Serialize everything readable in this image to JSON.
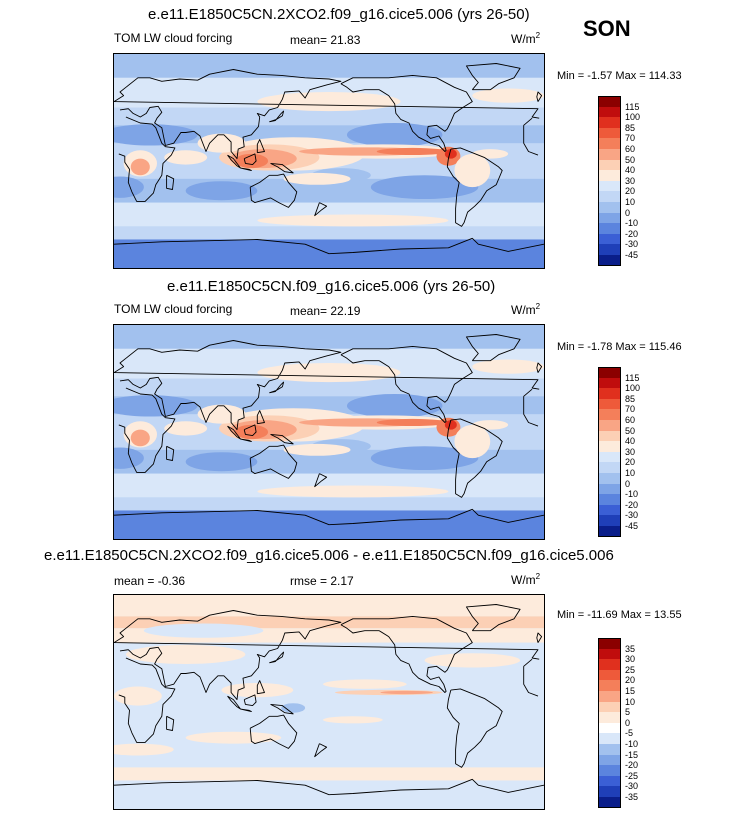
{
  "season": "SON",
  "panels": [
    {
      "id": "test",
      "title": "e.e11.E1850C5CN.2XCO2.f09_g16.cice5.006 (yrs 26-50)",
      "variable": "TOM LW cloud forcing",
      "stat1_label": "mean=",
      "stat1_value": "21.83",
      "stat2_label": "",
      "stat2_value": "",
      "units": "W/m",
      "units_sup": "2",
      "min_label": "Min =",
      "min_value": "-1.57",
      "max_label": "Max =",
      "max_value": "114.33",
      "levels": [
        "115",
        "100",
        "85",
        "70",
        "60",
        "50",
        "40",
        "30",
        "20",
        "10",
        "0",
        "-10",
        "-20",
        "-30",
        "-45"
      ],
      "colors": [
        "#8b0000",
        "#c00d0d",
        "#e0301e",
        "#ee5a3a",
        "#f47f5a",
        "#f9a585",
        "#fcd0b5",
        "#fdebdc",
        "#d9e7f9",
        "#c2d7f5",
        "#a2c1ee",
        "#7ea4e6",
        "#5b84de",
        "#3b5fd5",
        "#1f3fb8",
        "#0a1e8a"
      ]
    },
    {
      "id": "control",
      "title": "e.e11.E1850C5CN.f09_g16.cice5.006 (yrs 26-50)",
      "variable": "TOM LW cloud forcing",
      "stat1_label": "mean=",
      "stat1_value": "22.19",
      "stat2_label": "",
      "stat2_value": "",
      "units": "W/m",
      "units_sup": "2",
      "min_label": "Min =",
      "min_value": "-1.78",
      "max_label": "Max =",
      "max_value": "115.46",
      "levels": [
        "115",
        "100",
        "85",
        "70",
        "60",
        "50",
        "40",
        "30",
        "20",
        "10",
        "0",
        "-10",
        "-20",
        "-30",
        "-45"
      ],
      "colors": [
        "#8b0000",
        "#c00d0d",
        "#e0301e",
        "#ee5a3a",
        "#f47f5a",
        "#f9a585",
        "#fcd0b5",
        "#fdebdc",
        "#d9e7f9",
        "#c2d7f5",
        "#a2c1ee",
        "#7ea4e6",
        "#5b84de",
        "#3b5fd5",
        "#1f3fb8",
        "#0a1e8a"
      ]
    },
    {
      "id": "diff",
      "title": "e.e11.E1850C5CN.2XCO2.f09_g16.cice5.006 - e.e11.E1850C5CN.f09_g16.cice5.006",
      "variable": "",
      "stat1_label": "mean =",
      "stat1_value": "-0.36",
      "stat2_label": "rmse =",
      "stat2_value": "2.17",
      "units": "W/m",
      "units_sup": "2",
      "min_label": "Min =",
      "min_value": "-11.69",
      "max_label": "Max =",
      "max_value": "13.55",
      "levels": [
        "35",
        "30",
        "25",
        "20",
        "15",
        "10",
        "5",
        "0",
        "-5",
        "-10",
        "-15",
        "-20",
        "-25",
        "-30",
        "-35"
      ],
      "colors": [
        "#8b0000",
        "#c00d0d",
        "#e0301e",
        "#ee5a3a",
        "#f47f5a",
        "#f9a585",
        "#fcd0b5",
        "#fdebdc",
        "#ffffff",
        "#d9e7f9",
        "#a2c1ee",
        "#7ea4e6",
        "#5b84de",
        "#3b5fd5",
        "#1f3fb8",
        "#0a1e8a"
      ]
    }
  ],
  "chart_data": [
    {
      "type": "heatmap",
      "title": "e.e11.E1850C5CN.2XCO2.f09_g16.cice5.006 (yrs 26-50)",
      "variable": "TOM LW cloud forcing",
      "units": "W/m2",
      "mean": 21.83,
      "min": -1.57,
      "max": 114.33,
      "contour_levels": [
        -45,
        -30,
        -20,
        -10,
        0,
        10,
        20,
        30,
        40,
        50,
        60,
        70,
        85,
        100,
        115
      ]
    },
    {
      "type": "heatmap",
      "title": "e.e11.E1850C5CN.f09_g16.cice5.006 (yrs 26-50)",
      "variable": "TOM LW cloud forcing",
      "units": "W/m2",
      "mean": 22.19,
      "min": -1.78,
      "max": 115.46,
      "contour_levels": [
        -45,
        -30,
        -20,
        -10,
        0,
        10,
        20,
        30,
        40,
        50,
        60,
        70,
        85,
        100,
        115
      ]
    },
    {
      "type": "heatmap",
      "title": "e.e11.E1850C5CN.2XCO2.f09_g16.cice5.006 - e.e11.E1850C5CN.f09_g16.cice5.006",
      "units": "W/m2",
      "mean": -0.36,
      "rmse": 2.17,
      "min": -11.69,
      "max": 13.55,
      "contour_levels": [
        -35,
        -30,
        -25,
        -20,
        -15,
        -10,
        -5,
        0,
        5,
        10,
        15,
        20,
        25,
        30,
        35
      ]
    }
  ]
}
